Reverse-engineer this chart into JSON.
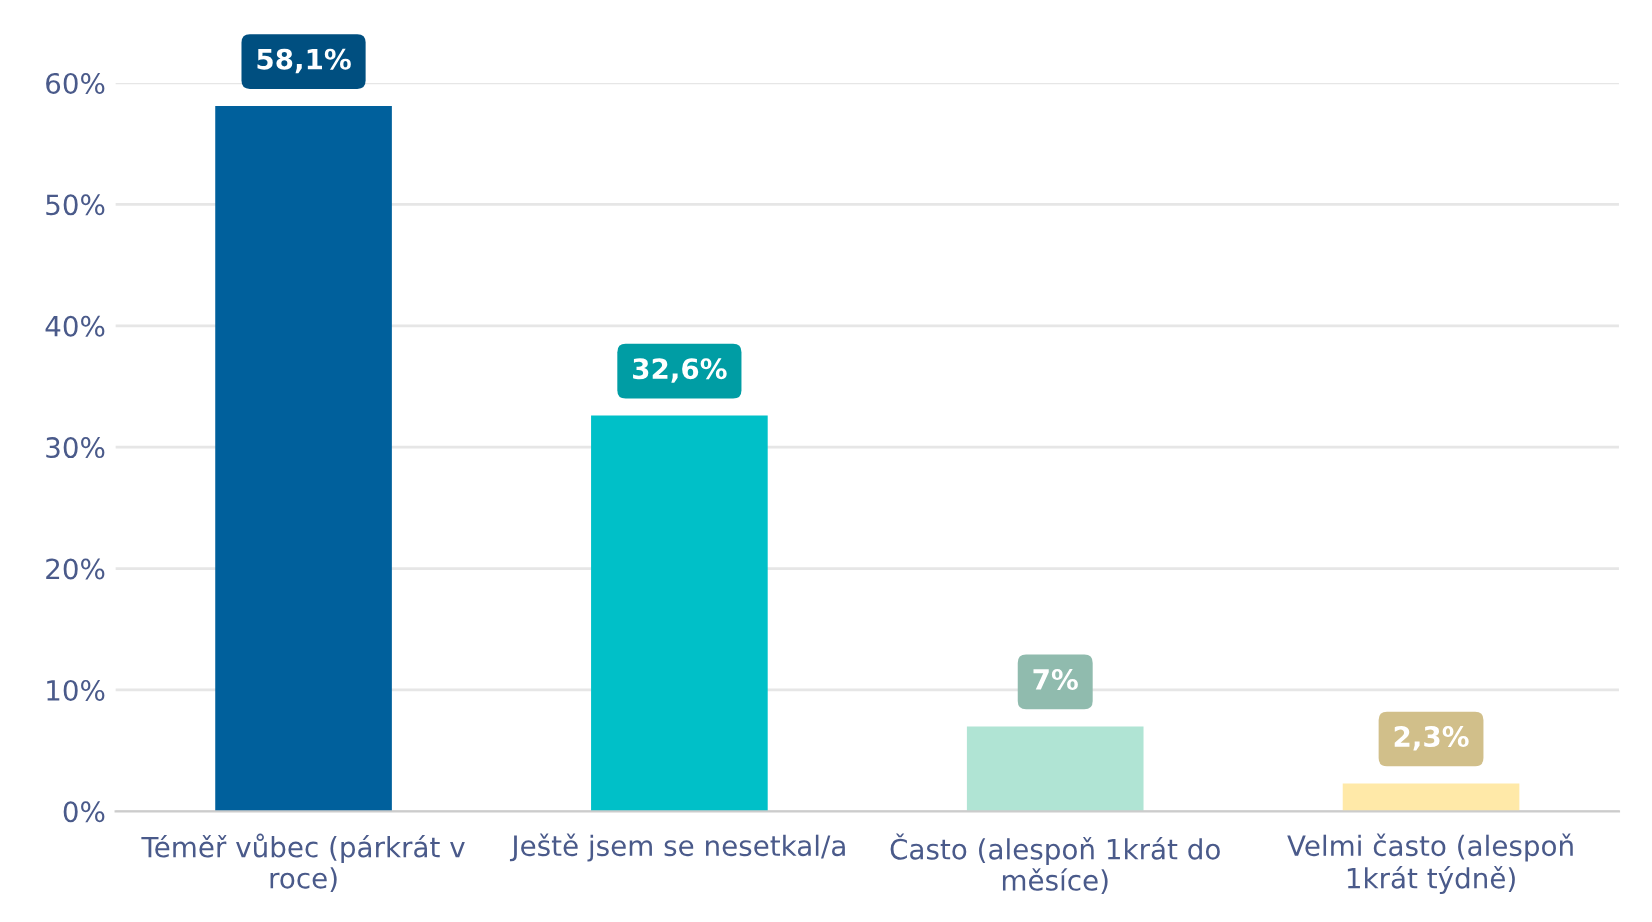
{
  "chart_data": {
    "type": "bar",
    "categories": [
      "Téměř vůbec (párkrát v roce)",
      "Ještě jsem se nesetkal/a",
      "Často (alespoň 1krát do měsíce)",
      "Velmi často (alespoň 1krát týdně)"
    ],
    "values": [
      58.1,
      32.6,
      7,
      2.3
    ],
    "colors": [
      "#00609c",
      "#00c0c8",
      "#b0e4d4",
      "#ffe9a8"
    ],
    "value_labels": [
      "58,1%",
      "32,6%",
      "7%",
      "2,3%"
    ],
    "ylim": [
      0,
      60
    ],
    "yticks": [
      {
        "value": 0,
        "label": "0%"
      },
      {
        "value": 10,
        "label": "10%"
      },
      {
        "value": 20,
        "label": "20%"
      },
      {
        "value": 30,
        "label": "30%"
      },
      {
        "value": 40,
        "label": "40%"
      },
      {
        "value": 50,
        "label": "50%"
      },
      {
        "value": 60,
        "label": "60%"
      }
    ],
    "grid": "y",
    "legend": false
  }
}
